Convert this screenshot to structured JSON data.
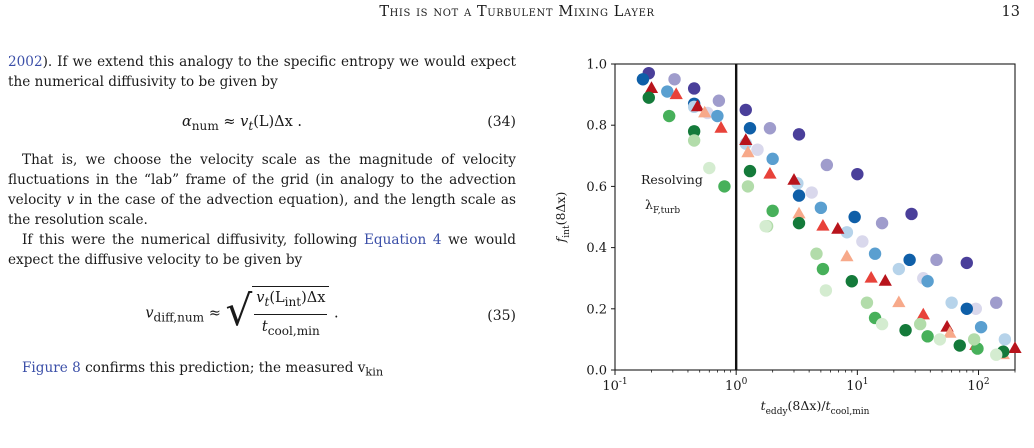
{
  "header": {
    "running_title": "This is not a Turbulent Mixing Layer",
    "page_number": "13"
  },
  "body": {
    "p1_link": "2002",
    "p1_text": "). If we extend this analogy to the specific entropy we would expect the numerical diffusivity to be given by",
    "eq34": {
      "lhs": "α",
      "lhs_sub": "num",
      "rhs_pre": " ≈ ",
      "rhs_v": "v",
      "rhs_v_sub": "t",
      "rhs_rest": "(L)Δx .",
      "number": "(34)"
    },
    "p2_a": "That is, we choose the velocity scale as the magnitude of velocity fluctuations in the “lab” frame of the grid (in analogy to the advection velocity ",
    "p2_v": "v",
    "p2_b": " in the case of the advection equation), and the length scale as the resolution scale.",
    "p3_a": "If this were the numerical diffusivity, following ",
    "p3_link": "Equation 4",
    "p3_b": " we would expect the diffusive velocity to be given by",
    "eq35": {
      "lhs": "v",
      "lhs_sub": "diff,num",
      "approx": " ≈ ",
      "num_v": "v",
      "num_v_sub": "t",
      "num_rest_a": "(L",
      "num_rest_sub": "int",
      "num_rest_b": ")Δx",
      "den": "t",
      "den_sub": "cool,min",
      "tail": " .",
      "number": "(35)"
    },
    "p4_link": "Figure 8",
    "p4_text": " confirms this prediction; the measured v",
    "p4_sub": "kin"
  },
  "figure": {
    "annotation_line1": "Resolving",
    "annotation_line2": "λ",
    "annotation_line2_sub": "F,turb"
  },
  "chart_data": {
    "type": "scatter",
    "xlabel": "t_eddy(8Δx)/t_cool,min",
    "ylabel": "f_int(8Δx)",
    "xscale": "log",
    "xlim": [
      0.1,
      200
    ],
    "ylim": [
      0.0,
      1.0
    ],
    "xticks": [
      "10^-1",
      "10^0",
      "10^1",
      "10^2"
    ],
    "yticks": [
      "0.0",
      "0.2",
      "0.4",
      "0.6",
      "0.8",
      "1.0"
    ],
    "vline_x": 1.0,
    "series": [
      {
        "marker": "circle",
        "color": "#4a3f9a",
        "points": [
          [
            0.19,
            0.97
          ],
          [
            0.45,
            0.92
          ],
          [
            1.2,
            0.85
          ],
          [
            3.3,
            0.77
          ],
          [
            10,
            0.64
          ],
          [
            28,
            0.51
          ],
          [
            80,
            0.35
          ]
        ]
      },
      {
        "marker": "circle",
        "color": "#9f9ccc",
        "points": [
          [
            0.31,
            0.95
          ],
          [
            0.72,
            0.88
          ],
          [
            1.9,
            0.79
          ],
          [
            5.6,
            0.67
          ],
          [
            16,
            0.48
          ],
          [
            45,
            0.36
          ],
          [
            140,
            0.22
          ]
        ]
      },
      {
        "marker": "circle",
        "color": "#d9d8ec",
        "points": [
          [
            0.58,
            0.84
          ],
          [
            1.5,
            0.72
          ],
          [
            4.2,
            0.58
          ],
          [
            11,
            0.42
          ],
          [
            35,
            0.3
          ],
          [
            95,
            0.2
          ]
        ]
      },
      {
        "marker": "circle",
        "color": "#0f5fa8",
        "points": [
          [
            0.17,
            0.95
          ],
          [
            0.45,
            0.87
          ],
          [
            1.3,
            0.79
          ],
          [
            3.3,
            0.57
          ],
          [
            9.5,
            0.5
          ],
          [
            27,
            0.36
          ],
          [
            80,
            0.2
          ]
        ]
      },
      {
        "marker": "circle",
        "color": "#5a9fd0",
        "points": [
          [
            0.27,
            0.91
          ],
          [
            0.7,
            0.83
          ],
          [
            2.0,
            0.69
          ],
          [
            5.0,
            0.53
          ],
          [
            14,
            0.38
          ],
          [
            38,
            0.29
          ],
          [
            105,
            0.14
          ]
        ]
      },
      {
        "marker": "circle",
        "color": "#b6d3ea",
        "points": [
          [
            0.45,
            0.86
          ],
          [
            1.2,
            0.74
          ],
          [
            3.2,
            0.61
          ],
          [
            8.2,
            0.45
          ],
          [
            22,
            0.33
          ],
          [
            60,
            0.22
          ],
          [
            165,
            0.1
          ]
        ]
      },
      {
        "marker": "triangle",
        "color": "#b8141c",
        "points": [
          [
            0.2,
            0.92
          ],
          [
            0.48,
            0.86
          ],
          [
            1.2,
            0.75
          ],
          [
            3.0,
            0.62
          ],
          [
            6.9,
            0.46
          ],
          [
            17,
            0.29
          ],
          [
            55,
            0.14
          ],
          [
            200,
            0.07
          ]
        ]
      },
      {
        "marker": "triangle",
        "color": "#e8423a",
        "points": [
          [
            0.32,
            0.9
          ],
          [
            0.75,
            0.79
          ],
          [
            1.9,
            0.64
          ],
          [
            5.2,
            0.47
          ],
          [
            13,
            0.3
          ],
          [
            35,
            0.18
          ],
          [
            95,
            0.08
          ]
        ]
      },
      {
        "marker": "triangle",
        "color": "#f7a98a",
        "points": [
          [
            0.55,
            0.84
          ],
          [
            1.25,
            0.71
          ],
          [
            3.3,
            0.51
          ],
          [
            8.2,
            0.37
          ],
          [
            22,
            0.22
          ],
          [
            58,
            0.12
          ],
          [
            160,
            0.05
          ]
        ]
      },
      {
        "marker": "circle",
        "color": "#147a3a",
        "points": [
          [
            0.19,
            0.89
          ],
          [
            0.45,
            0.78
          ],
          [
            1.3,
            0.65
          ],
          [
            3.3,
            0.48
          ],
          [
            9.0,
            0.29
          ],
          [
            25,
            0.13
          ],
          [
            70,
            0.08
          ],
          [
            160,
            0.06
          ]
        ]
      },
      {
        "marker": "circle",
        "color": "#47b05a",
        "points": [
          [
            0.28,
            0.83
          ],
          [
            0.8,
            0.6
          ],
          [
            2.0,
            0.52
          ],
          [
            5.2,
            0.33
          ],
          [
            14,
            0.17
          ],
          [
            38,
            0.11
          ],
          [
            98,
            0.07
          ]
        ]
      },
      {
        "marker": "circle",
        "color": "#b2dcaa",
        "points": [
          [
            0.45,
            0.75
          ],
          [
            1.25,
            0.6
          ],
          [
            1.8,
            0.47
          ],
          [
            4.6,
            0.38
          ],
          [
            12,
            0.22
          ],
          [
            33,
            0.15
          ],
          [
            92,
            0.1
          ]
        ]
      },
      {
        "marker": "circle",
        "color": "#d4ecd0",
        "points": [
          [
            0.6,
            0.66
          ],
          [
            1.75,
            0.47
          ],
          [
            5.5,
            0.26
          ],
          [
            16,
            0.15
          ],
          [
            48,
            0.1
          ],
          [
            140,
            0.05
          ]
        ]
      }
    ]
  }
}
